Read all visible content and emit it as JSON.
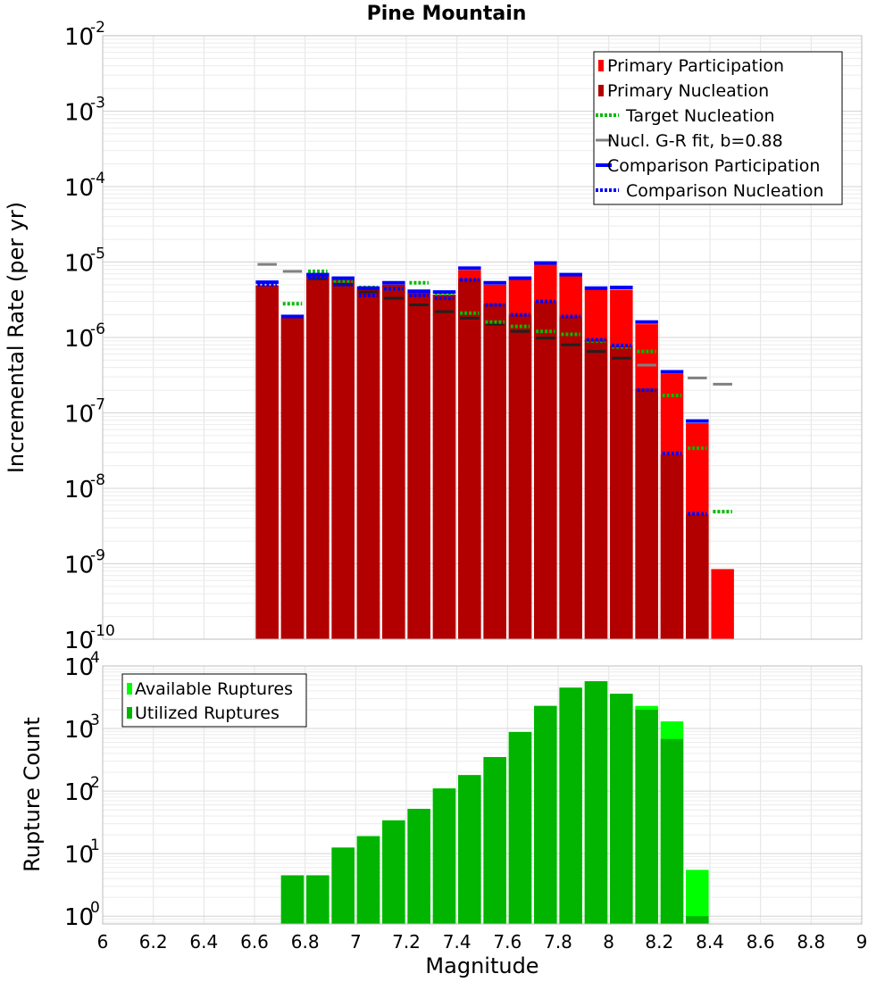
{
  "title": "Pine Mountain",
  "colors": {
    "primary_participation": "#ff0000",
    "primary_nucleation": "#b20000",
    "target_nucleation": "#00bb00",
    "gr_fit": "#808080",
    "gr_fit_dark": "#202020",
    "comparison": "#0000ff",
    "available": "#00ff00",
    "utilized": "#00b400"
  },
  "chart_data": [
    {
      "type": "bar",
      "scale": "log",
      "xlabel": "",
      "ylabel": "Incremental Rate (per yr)",
      "xlim": [
        6,
        9
      ],
      "ylim": [
        1e-10,
        0.01
      ],
      "grid": true,
      "legend_position": "top-right",
      "ytick_labels": [
        {
          "base": "10",
          "exp": "-10"
        },
        {
          "base": "10",
          "exp": "-9"
        },
        {
          "base": "10",
          "exp": "-8"
        },
        {
          "base": "10",
          "exp": "-7"
        },
        {
          "base": "10",
          "exp": "-6"
        },
        {
          "base": "10",
          "exp": "-5"
        },
        {
          "base": "10",
          "exp": "-4"
        },
        {
          "base": "10",
          "exp": "-3"
        },
        {
          "base": "10",
          "exp": "-2"
        }
      ],
      "legend": [
        {
          "label": "Primary Participation",
          "style": "bar",
          "color_key": "primary_participation"
        },
        {
          "label": "Primary Nucleation",
          "style": "bar",
          "color_key": "primary_nucleation"
        },
        {
          "label": "Target Nucleation",
          "style": "dotted",
          "color_key": "target_nucleation"
        },
        {
          "label": "Nucl. G-R fit, b=0.88",
          "style": "solid",
          "color_key": "gr_fit"
        },
        {
          "label": "Comparison Participation",
          "style": "thick",
          "color_key": "comparison"
        },
        {
          "label": "Comparison Nucleation",
          "style": "dotted",
          "color_key": "comparison"
        }
      ],
      "x": [
        6.65,
        6.75,
        6.85,
        6.95,
        7.05,
        7.15,
        7.25,
        7.35,
        7.45,
        7.55,
        7.65,
        7.75,
        7.85,
        7.95,
        8.05,
        8.15,
        8.25,
        8.35,
        8.45
      ],
      "series": [
        {
          "name": "Primary Participation",
          "values": [
            4.9e-06,
            1.8e-06,
            6.5e-06,
            5.8e-06,
            4.3e-06,
            5e-06,
            3.9e-06,
            3.7e-06,
            7.8e-06,
            5e-06,
            5.8e-06,
            9.2e-06,
            6.5e-06,
            4.3e-06,
            4.3e-06,
            1.5e-06,
            3.3e-07,
            7.3e-08,
            8.5e-10
          ]
        },
        {
          "name": "Primary Nucleation",
          "values": [
            4.9e-06,
            1.8e-06,
            6.5e-06,
            5.8e-06,
            4.3e-06,
            5e-06,
            3.9e-06,
            3.7e-06,
            6e-06,
            2.8e-06,
            2e-06,
            3e-06,
            1.9e-06,
            9.5e-07,
            7.8e-07,
            2.1e-07,
            2.8e-08,
            4.5e-09,
            null
          ]
        },
        {
          "name": "Target Nucleation",
          "values": [
            5.2e-06,
            2.8e-06,
            7.5e-06,
            5.5e-06,
            4.6e-06,
            4.4e-06,
            5.3e-06,
            3.8e-06,
            2.1e-06,
            1.6e-06,
            1.4e-06,
            1.2e-06,
            1.1e-06,
            9e-07,
            7.5e-07,
            6.5e-07,
            1.7e-07,
            3.4e-08,
            4.9e-09
          ]
        },
        {
          "name": "Nucl. G-R fit, b=0.88",
          "values": [
            9.3e-06,
            7.5e-06,
            6e-06,
            5e-06,
            4e-06,
            3.3e-06,
            2.7e-06,
            2.2e-06,
            1.8e-06,
            1.5e-06,
            1.2e-06,
            9.8e-07,
            8e-07,
            6.5e-07,
            5.3e-07,
            4.3e-07,
            3.5e-07,
            2.9e-07,
            2.4e-07
          ]
        },
        {
          "name": "Comparison Participation",
          "values": [
            5.4e-06,
            1.9e-06,
            6.8e-06,
            6.1e-06,
            4.5e-06,
            5.3e-06,
            4.1e-06,
            4e-06,
            8.3e-06,
            5.3e-06,
            6.1e-06,
            9.7e-06,
            6.8e-06,
            4.5e-06,
            4.6e-06,
            1.6e-06,
            3.5e-07,
            7.8e-08,
            null
          ]
        },
        {
          "name": "Comparison Nucleation",
          "values": [
            5e-06,
            1.9e-06,
            6.2e-06,
            5e-06,
            3.6e-06,
            4.4e-06,
            3.6e-06,
            3.3e-06,
            5.8e-06,
            2.7e-06,
            2e-06,
            3e-06,
            1.9e-06,
            9.3e-07,
            7.8e-07,
            2e-07,
            2.9e-08,
            4.6e-09,
            null
          ]
        }
      ]
    },
    {
      "type": "bar",
      "scale": "log",
      "xlabel": "Magnitude",
      "ylabel": "Rupture Count",
      "xlim": [
        6,
        9
      ],
      "ylim": [
        0.75,
        10000
      ],
      "grid": true,
      "legend_position": "top-left",
      "xtick_labels": [
        "6",
        "6.2",
        "6.4",
        "6.6",
        "6.8",
        "7",
        "7.2",
        "7.4",
        "7.6",
        "7.8",
        "8",
        "8.2",
        "8.4",
        "8.6",
        "8.8",
        "9"
      ],
      "ytick_labels": [
        {
          "base": "10",
          "exp": "0"
        },
        {
          "base": "10",
          "exp": "1"
        },
        {
          "base": "10",
          "exp": "2"
        },
        {
          "base": "10",
          "exp": "3"
        },
        {
          "base": "10",
          "exp": "4"
        }
      ],
      "legend": [
        {
          "label": "Available Ruptures",
          "style": "bar",
          "color_key": "available"
        },
        {
          "label": "Utilized Ruptures",
          "style": "bar",
          "color_key": "utilized"
        }
      ],
      "x": [
        6.75,
        6.85,
        6.95,
        7.05,
        7.15,
        7.25,
        7.35,
        7.45,
        7.55,
        7.65,
        7.75,
        7.85,
        7.95,
        8.05,
        8.15,
        8.25,
        8.35
      ],
      "series": [
        {
          "name": "Available Ruptures",
          "values": [
            4.5,
            4.5,
            12.5,
            19,
            34,
            52,
            110,
            180,
            350,
            880,
            2300,
            4500,
            5700,
            3600,
            2300,
            1300,
            5.5
          ]
        },
        {
          "name": "Utilized Ruptures",
          "values": [
            4.5,
            4.5,
            12.5,
            19,
            34,
            52,
            110,
            180,
            350,
            880,
            2300,
            4500,
            5700,
            3600,
            2000,
            680,
            1
          ]
        }
      ]
    }
  ]
}
